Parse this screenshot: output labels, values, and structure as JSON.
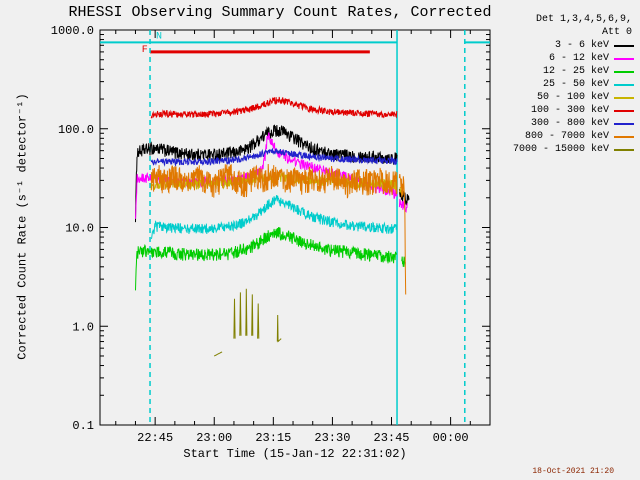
{
  "title": "RHESSI Observing Summary Count Rates, Corrected",
  "timestamp": "18-Oct-2021 21:20",
  "legend": {
    "header_detectors": "Det 1,3,4,5,6,9,",
    "header_attenuator": "Att 0",
    "entries": [
      {
        "label": "3 - 6 keV",
        "color": "#000000"
      },
      {
        "label": "6 - 12 keV",
        "color": "#ff00ff"
      },
      {
        "label": "12 - 25 keV",
        "color": "#00cc00"
      },
      {
        "label": "25 - 50 keV",
        "color": "#00cccc"
      },
      {
        "label": "50 - 100 keV",
        "color": "#c8b400"
      },
      {
        "label": "100 - 300 keV",
        "color": "#e00000"
      },
      {
        "label": "300 - 800 keV",
        "color": "#2222cc"
      },
      {
        "label": "800 - 7000 keV",
        "color": "#e07800"
      },
      {
        "label": "7000 - 15000 keV",
        "color": "#808000"
      }
    ]
  },
  "axes": {
    "xlabel": "Start Time (15-Jan-12 22:31:02)",
    "ylabel": "Corrected Count Rate (s⁻¹ detector⁻¹)"
  },
  "chart_data": {
    "type": "line",
    "title": "RHESSI Observing Summary Count Rates, Corrected",
    "xlabel": "Start Time (15-Jan-12 22:31:02)",
    "ylabel": "Corrected Count Rate (s⁻¹ detector⁻¹)",
    "x_unit": "minutes after 22:31:02 on 15-Jan-12",
    "xlim": [
      0,
      99
    ],
    "ylim": [
      0.1,
      1000
    ],
    "ylog": true,
    "grid": false,
    "legend_position": "outside-right",
    "x_ticks": [
      {
        "t": 14,
        "label": "22:45"
      },
      {
        "t": 29,
        "label": "23:00"
      },
      {
        "t": 44,
        "label": "23:15"
      },
      {
        "t": 59,
        "label": "23:30"
      },
      {
        "t": 74,
        "label": "23:45"
      },
      {
        "t": 89,
        "label": "00:00"
      }
    ],
    "x_minor_step": 5,
    "y_ticks": [
      {
        "v": 1000,
        "label": "1000.0"
      },
      {
        "v": 100,
        "label": "100.0"
      },
      {
        "v": 10,
        "label": "10.0"
      },
      {
        "v": 1,
        "label": "1.0"
      },
      {
        "v": 0.1,
        "label": "0.1"
      }
    ],
    "series": [
      {
        "name": "3-6 keV",
        "color": "#000000",
        "noise": 0.15,
        "points": [
          [
            9,
            13
          ],
          [
            9.4,
            58
          ],
          [
            12,
            62
          ],
          [
            14,
            64
          ],
          [
            17,
            60
          ],
          [
            20,
            57
          ],
          [
            23,
            55
          ],
          [
            26,
            55
          ],
          [
            29,
            55
          ],
          [
            32,
            56
          ],
          [
            35,
            58
          ],
          [
            38,
            66
          ],
          [
            40,
            76
          ],
          [
            42,
            88
          ],
          [
            44,
            96
          ],
          [
            45.5,
            97
          ],
          [
            47,
            92
          ],
          [
            49,
            82
          ],
          [
            51,
            73
          ],
          [
            53,
            66
          ],
          [
            55,
            61
          ],
          [
            57,
            58
          ],
          [
            60,
            55
          ],
          [
            63,
            54
          ],
          [
            66,
            53
          ],
          [
            69,
            52
          ],
          [
            72,
            52
          ],
          [
            75.4,
            50
          ],
          null,
          [
            76,
            22
          ],
          [
            77.5,
            20
          ],
          [
            78.5,
            19
          ]
        ]
      },
      {
        "name": "6-12 keV",
        "color": "#ff00ff",
        "noise": 0.12,
        "points": [
          [
            9,
            11
          ],
          [
            9.4,
            31
          ],
          [
            12,
            32
          ],
          [
            15,
            31
          ],
          [
            18,
            30
          ],
          [
            21,
            29
          ],
          [
            24,
            29
          ],
          [
            27,
            29
          ],
          [
            30,
            30
          ],
          [
            33,
            30
          ],
          [
            36,
            31
          ],
          [
            39,
            34
          ],
          [
            41,
            38
          ],
          [
            42,
            55
          ],
          [
            42.6,
            88
          ],
          [
            43.2,
            78
          ],
          [
            44,
            68
          ],
          [
            45,
            60
          ],
          [
            46.5,
            54
          ],
          [
            48,
            50
          ],
          [
            50,
            46
          ],
          [
            52,
            43
          ],
          [
            54,
            41
          ],
          [
            57,
            38
          ],
          [
            60,
            35
          ],
          [
            63,
            32
          ],
          [
            66,
            29
          ],
          [
            69,
            26
          ],
          [
            72,
            24
          ],
          [
            75.4,
            22
          ],
          null,
          [
            76,
            18
          ],
          [
            78,
            16
          ]
        ]
      },
      {
        "name": "12-25 keV",
        "color": "#00cc00",
        "noise": 0.15,
        "points": [
          [
            9,
            2.4
          ],
          [
            9.4,
            5.6
          ],
          [
            12,
            5.8
          ],
          [
            15,
            5.7
          ],
          [
            18,
            5.5
          ],
          [
            21,
            5.4
          ],
          [
            24,
            5.3
          ],
          [
            27,
            5.3
          ],
          [
            30,
            5.4
          ],
          [
            33,
            5.5
          ],
          [
            36,
            5.9
          ],
          [
            39,
            6.6
          ],
          [
            41,
            7.4
          ],
          [
            43,
            8.4
          ],
          [
            44.5,
            8.9
          ],
          [
            46,
            8.7
          ],
          [
            48,
            8.1
          ],
          [
            50,
            7.5
          ],
          [
            52,
            7
          ],
          [
            54,
            6.6
          ],
          [
            56,
            6.3
          ],
          [
            58,
            6
          ],
          [
            61,
            5.8
          ],
          [
            64,
            5.6
          ],
          [
            67,
            5.4
          ],
          [
            70,
            5.3
          ],
          [
            73,
            5.1
          ],
          [
            75.4,
            5
          ],
          null,
          [
            76.5,
            4.6
          ],
          [
            77.5,
            4.4
          ]
        ]
      },
      {
        "name": "25-50 keV",
        "color": "#00cccc",
        "noise": 0.12,
        "points": [
          [
            13,
            8.5
          ],
          [
            14,
            10.3
          ],
          [
            16,
            10.2
          ],
          [
            19,
            10
          ],
          [
            22,
            9.8
          ],
          [
            25,
            9.7
          ],
          [
            28,
            9.8
          ],
          [
            31,
            10
          ],
          [
            34,
            10.5
          ],
          [
            37,
            11.5
          ],
          [
            39,
            12.8
          ],
          [
            41,
            14.8
          ],
          [
            43,
            17.5
          ],
          [
            44.5,
            19
          ],
          [
            46,
            18.4
          ],
          [
            48,
            17
          ],
          [
            50,
            15.4
          ],
          [
            52,
            14
          ],
          [
            54,
            13
          ],
          [
            56,
            12.2
          ],
          [
            58,
            11.6
          ],
          [
            61,
            11
          ],
          [
            64,
            10.5
          ],
          [
            67,
            10.2
          ],
          [
            70,
            10
          ],
          [
            73,
            9.8
          ],
          [
            75.4,
            9.6
          ]
        ]
      },
      {
        "name": "50-100 keV",
        "color": "#c8b400",
        "noise": 0.12,
        "points": [
          [
            13,
            27
          ],
          [
            16,
            28
          ],
          [
            20,
            28
          ],
          [
            24,
            27.5
          ],
          [
            28,
            28
          ],
          [
            32,
            28.5
          ],
          [
            36,
            29.5
          ],
          [
            40,
            31
          ],
          [
            43,
            32.5
          ],
          [
            46,
            32.5
          ],
          [
            49,
            31.5
          ],
          [
            52,
            30.5
          ],
          [
            55,
            30
          ],
          [
            58,
            29.5
          ],
          [
            62,
            29
          ],
          [
            66,
            28.5
          ],
          [
            70,
            28
          ],
          [
            73,
            27.5
          ],
          [
            75.4,
            27
          ],
          null,
          [
            76,
            24
          ],
          [
            77,
            23
          ]
        ]
      },
      {
        "name": "100-300 keV",
        "color": "#e00000",
        "noise": 0.08,
        "points": [
          [
            13,
            138
          ],
          [
            16,
            142
          ],
          [
            20,
            140
          ],
          [
            24,
            139
          ],
          [
            28,
            141
          ],
          [
            32,
            145
          ],
          [
            35,
            150
          ],
          [
            38,
            158
          ],
          [
            40,
            168
          ],
          [
            42,
            180
          ],
          [
            44,
            192
          ],
          [
            45.5,
            196
          ],
          [
            47,
            190
          ],
          [
            49,
            180
          ],
          [
            51,
            170
          ],
          [
            53,
            162
          ],
          [
            55,
            156
          ],
          [
            58,
            150
          ],
          [
            61,
            147
          ],
          [
            64,
            145
          ],
          [
            67,
            143
          ],
          [
            70,
            142
          ],
          [
            73,
            141
          ],
          [
            75.4,
            140
          ]
        ]
      },
      {
        "name": "300-800 keV",
        "color": "#2222cc",
        "noise": 0.08,
        "points": [
          [
            13,
            46
          ],
          [
            17,
            46.5
          ],
          [
            21,
            46
          ],
          [
            25,
            46.5
          ],
          [
            29,
            47
          ],
          [
            33,
            48
          ],
          [
            36,
            50
          ],
          [
            39,
            53
          ],
          [
            42,
            57
          ],
          [
            44,
            59.5
          ],
          [
            46,
            58.5
          ],
          [
            48,
            56.5
          ],
          [
            50,
            55
          ],
          [
            53,
            53
          ],
          [
            56,
            51.5
          ],
          [
            59,
            50
          ],
          [
            62,
            49
          ],
          [
            65,
            48.5
          ],
          [
            68,
            48
          ],
          [
            71,
            47.5
          ],
          [
            75.4,
            47
          ]
        ]
      },
      {
        "name": "800-7000 keV",
        "color": "#e07800",
        "noise": 0.3,
        "points": [
          [
            13,
            30
          ],
          [
            15,
            33
          ],
          [
            17,
            29
          ],
          [
            19,
            35
          ],
          [
            21,
            31
          ],
          [
            23,
            28
          ],
          [
            25,
            34
          ],
          [
            27,
            30
          ],
          [
            29,
            27
          ],
          [
            31,
            33
          ],
          [
            33,
            36
          ],
          [
            35,
            30
          ],
          [
            37,
            28
          ],
          [
            39,
            33
          ],
          [
            41,
            31
          ],
          [
            43,
            35
          ],
          [
            45,
            32
          ],
          [
            47,
            29
          ],
          [
            49,
            33
          ],
          [
            51,
            30
          ],
          [
            53,
            32
          ],
          [
            55,
            29
          ],
          [
            57,
            31
          ],
          [
            59,
            34
          ],
          [
            61,
            30
          ],
          [
            63,
            28
          ],
          [
            65,
            31
          ],
          [
            67,
            30
          ],
          [
            69,
            29
          ],
          [
            71,
            31
          ],
          [
            73,
            30
          ],
          [
            75.4,
            29
          ],
          null,
          [
            76,
            27
          ],
          [
            77.3,
            26
          ],
          [
            77.6,
            2.5
          ]
        ]
      },
      {
        "name": "7000-15000 keV",
        "color": "#808000",
        "noise": 0,
        "points": [
          [
            29,
            0.5
          ],
          [
            31,
            0.55
          ],
          null,
          [
            34,
            0.75
          ],
          [
            34.15,
            1.9
          ],
          [
            34.3,
            0.75
          ],
          null,
          [
            35.5,
            0.8
          ],
          [
            35.65,
            2.2
          ],
          [
            35.8,
            0.8
          ],
          null,
          [
            37,
            0.8
          ],
          [
            37.15,
            2.4
          ],
          [
            37.3,
            0.8
          ],
          null,
          [
            38.5,
            0.8
          ],
          [
            38.65,
            2.1
          ],
          [
            38.8,
            0.8
          ],
          null,
          [
            40,
            0.75
          ],
          [
            40.15,
            1.7
          ],
          [
            40.3,
            0.75
          ],
          null,
          [
            45,
            0.7
          ],
          [
            45.1,
            1.3
          ],
          [
            45.2,
            0.7
          ],
          [
            46,
            0.75
          ]
        ]
      }
    ],
    "overlays": {
      "eclipse_line": {
        "value": 750,
        "color": "#00cccc",
        "width": 2,
        "segments": [
          [
            0,
            75.4
          ],
          [
            92.6,
            99
          ]
        ]
      },
      "flare_bar": {
        "value": 600,
        "color": "#e00000",
        "width": 3,
        "segments": [
          [
            12.7,
            68.5
          ]
        ]
      },
      "vlines": [
        {
          "t": 12.7,
          "style": "dashed",
          "color": "#00cccc"
        },
        {
          "t": 75.4,
          "style": "solid",
          "color": "#00cccc"
        },
        {
          "t": 92.6,
          "style": "dashed",
          "color": "#00cccc"
        }
      ],
      "flag_labels": [
        {
          "text": "F",
          "t": 10.6,
          "v": 600,
          "color": "#e00000"
        },
        {
          "text": "N",
          "t": 14.2,
          "v": 820,
          "color": "#00cccc"
        }
      ]
    }
  }
}
